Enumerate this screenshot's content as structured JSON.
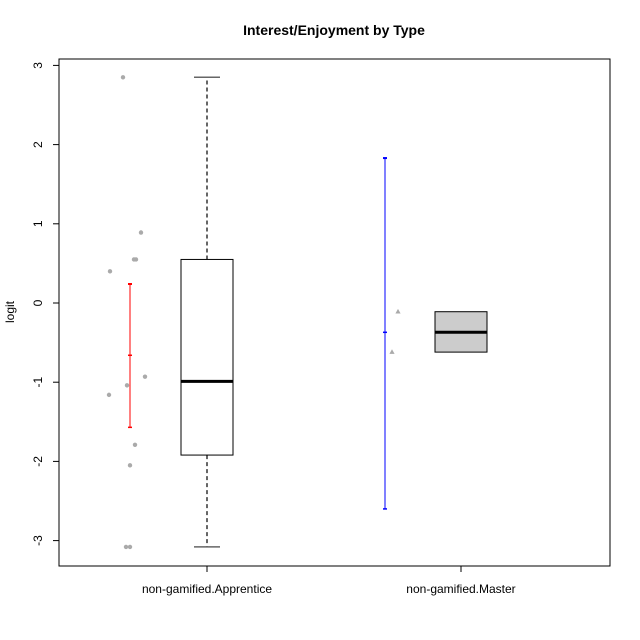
{
  "chart_data": {
    "type": "box",
    "title": "Interest/Enjoyment by Type",
    "xlabel": "",
    "ylabel": "logit",
    "ylim": [
      -3.3,
      3.1
    ],
    "y_ticks": [
      3,
      2,
      1,
      0,
      -1,
      -2,
      -3
    ],
    "y_tick_labels": [
      "3",
      "2",
      "1",
      "0",
      "-1",
      "-2",
      "-3"
    ],
    "categories": [
      "non-gamified.Apprentice",
      "non-gamified.Master"
    ],
    "boxes": [
      {
        "category": "non-gamified.Apprentice",
        "fill": "#ffffff",
        "min": -3.08,
        "q1": -1.92,
        "median": -0.99,
        "q3": 0.55,
        "max": 2.85,
        "points_shape": "circle",
        "points": [
          2.85,
          0.89,
          0.55,
          0.55,
          0.4,
          -0.93,
          -1.04,
          -1.16,
          -1.79,
          -2.05,
          -3.08,
          -3.08
        ],
        "interval": {
          "lower": -1.57,
          "mean": -0.66,
          "upper": 0.24,
          "color": "#ff0000"
        }
      },
      {
        "category": "non-gamified.Master",
        "fill": "#cccccc",
        "min": -0.62,
        "q1": -0.62,
        "median": -0.37,
        "q3": -0.11,
        "max": -0.11,
        "points_shape": "triangle",
        "points": [
          -0.11,
          -0.62
        ],
        "interval": {
          "lower": -2.6,
          "mean": -0.37,
          "upper": 1.83,
          "color": "#0000ff"
        }
      }
    ]
  }
}
